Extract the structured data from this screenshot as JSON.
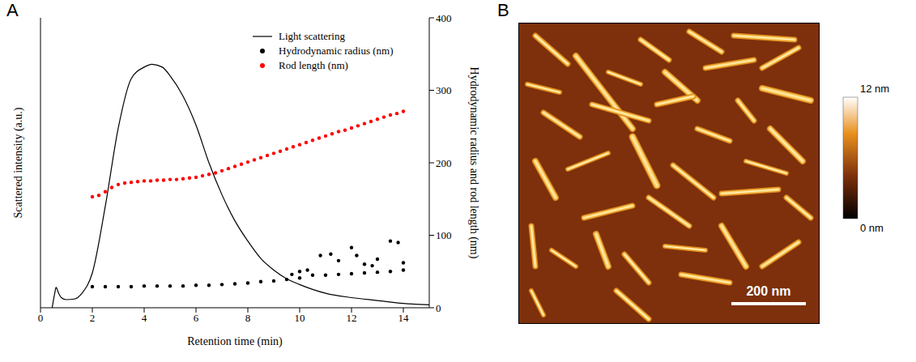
{
  "chart_data": {
    "type": "line",
    "panel_label": "A",
    "x_label": "Retention time (min)",
    "y_label": "Scattered intensity (a.u.)",
    "y2_label": "Hydrodynamic radius and rod length (nm)",
    "xlim": [
      0,
      15
    ],
    "xticks": [
      0,
      2,
      4,
      6,
      8,
      10,
      12,
      14
    ],
    "ylim": [
      0,
      1
    ],
    "yticks": [],
    "y2lim": [
      0,
      400
    ],
    "y2ticks": [
      0,
      100,
      200,
      300,
      400
    ],
    "legend": "upper right",
    "grid": false,
    "series": [
      {
        "name": "Light scattering",
        "type": "line",
        "color": "#000000",
        "line_style": "solid",
        "x": [
          0.45,
          0.55,
          0.6,
          0.7,
          0.8,
          1.0,
          1.3,
          1.6,
          2.0,
          2.5,
          3.0,
          3.5,
          4.0,
          4.3,
          4.7,
          5.0,
          5.5,
          6.0,
          6.5,
          7.0,
          7.5,
          8.0,
          8.5,
          9.0,
          9.5,
          10.0,
          11.0,
          12.0,
          13.0,
          14.0,
          15.0
        ],
        "values": [
          0,
          0.05,
          0.07,
          0.05,
          0.035,
          0.028,
          0.03,
          0.05,
          0.12,
          0.35,
          0.62,
          0.79,
          0.83,
          0.84,
          0.83,
          0.8,
          0.73,
          0.63,
          0.5,
          0.39,
          0.3,
          0.23,
          0.17,
          0.13,
          0.1,
          0.08,
          0.05,
          0.035,
          0.025,
          0.015,
          0.01
        ]
      },
      {
        "name": "Hydrodynamic radius (nm)",
        "type": "scatter",
        "marker": "circle",
        "color": "#000000",
        "axis": "y2",
        "x": [
          2,
          2.5,
          3,
          3.5,
          4,
          4.5,
          5,
          5.5,
          6,
          6.5,
          7,
          7.5,
          8,
          8.5,
          9,
          9.5,
          10,
          10.5,
          11,
          11.5,
          12,
          12.5,
          13,
          13.5,
          14,
          10.3,
          10.8,
          11.2,
          11.5,
          12,
          12.2,
          12.5,
          13,
          13.5,
          13.8,
          14,
          9.7,
          10,
          12.8
        ],
        "values": [
          29,
          29,
          29,
          29,
          30,
          30,
          30,
          30,
          31,
          31,
          32,
          33,
          34,
          36,
          37,
          39,
          41,
          45,
          45,
          46,
          47,
          48,
          49,
          50,
          52,
          52,
          72,
          74,
          65,
          83,
          72,
          60,
          67,
          92,
          90,
          62,
          46,
          50,
          58
        ]
      },
      {
        "name": "Rod length (nm)",
        "type": "scatter",
        "marker": "circle",
        "color": "#ff0000",
        "axis": "y2",
        "x": [
          2.0,
          2.25,
          2.5,
          2.75,
          3.0,
          3.25,
          3.5,
          3.75,
          4.0,
          4.25,
          4.5,
          4.75,
          5.0,
          5.25,
          5.5,
          5.75,
          6.0,
          6.25,
          6.5,
          6.75,
          7.0,
          7.25,
          7.5,
          7.75,
          8.0,
          8.25,
          8.5,
          8.75,
          9.0,
          9.25,
          9.5,
          9.75,
          10.0,
          10.25,
          10.5,
          10.75,
          11.0,
          11.25,
          11.5,
          11.75,
          12.0,
          12.25,
          12.5,
          12.75,
          13.0,
          13.25,
          13.5,
          13.75,
          14.0
        ],
        "values": [
          153,
          155,
          160,
          166,
          170,
          172,
          173,
          174,
          175,
          175,
          176,
          176,
          177,
          177,
          178,
          179,
          180,
          182,
          184,
          186,
          189,
          192,
          195,
          198,
          201,
          204,
          207,
          210,
          213,
          216,
          219,
          222,
          225,
          228,
          231,
          234,
          237,
          240,
          243,
          245,
          248,
          251,
          254,
          257,
          260,
          263,
          266,
          268,
          271
        ]
      }
    ]
  },
  "image_panel": {
    "panel_label": "B",
    "scale_bar": {
      "label": "200 nm"
    },
    "colorbar": {
      "range": [
        0,
        12
      ],
      "ticks": [
        {
          "value": 12,
          "label": "12 nm"
        },
        {
          "value": 0,
          "label": "0 nm"
        }
      ]
    }
  }
}
